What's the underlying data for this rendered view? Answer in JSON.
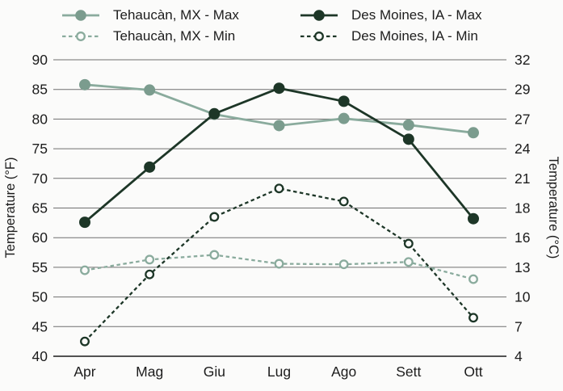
{
  "chart_data": {
    "type": "line",
    "title": "",
    "categories": [
      "Apr",
      "Mag",
      "Giu",
      "Lug",
      "Ago",
      "Sett",
      "Ott"
    ],
    "ylabel_left": "Temperature (°F)",
    "ylabel_right": "Temperature (°C)",
    "ylim_f": [
      40,
      90
    ],
    "yticks_f": [
      90,
      85,
      80,
      75,
      70,
      65,
      60,
      55,
      50,
      45,
      40
    ],
    "yticks_c": [
      32,
      29,
      27,
      24,
      21,
      18,
      16,
      13,
      10,
      7,
      4
    ],
    "grid": true,
    "legend_position": "top",
    "series": [
      {
        "name": "Tehaucàn, MX - Max",
        "style": "solid",
        "marker": "filled",
        "color": "#8aab9d",
        "marker_color": "#7b9c8e",
        "values": [
          85.8,
          84.9,
          80.8,
          78.9,
          80.1,
          79.0,
          77.7
        ]
      },
      {
        "name": "Tehaucàn, MX - Min",
        "style": "dashed",
        "marker": "open",
        "color": "#8aab9d",
        "marker_color": "#8aab9d",
        "values": [
          54.5,
          56.3,
          57.1,
          55.6,
          55.5,
          55.9,
          53.0
        ]
      },
      {
        "name": "Des Moines, IA - Max",
        "style": "solid",
        "marker": "filled",
        "color": "#1d3627",
        "marker_color": "#1d3627",
        "values": [
          62.6,
          71.9,
          80.9,
          85.2,
          83.0,
          76.6,
          63.2
        ]
      },
      {
        "name": "Des Moines, IA - Min",
        "style": "dashed",
        "marker": "open",
        "color": "#1d3627",
        "marker_color": "#1d3627",
        "values": [
          42.5,
          53.8,
          63.5,
          68.3,
          66.1,
          59.0,
          46.5
        ]
      }
    ],
    "colors": {
      "grid": "#6f6f6f",
      "axis_bottom": "#3a3a3a",
      "text": "#1c1c1c",
      "background": "#fbfbfa"
    }
  }
}
